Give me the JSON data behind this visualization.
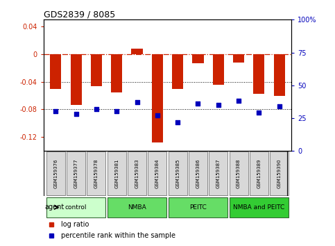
{
  "title": "GDS2839 / 8085",
  "samples": [
    "GSM159376",
    "GSM159377",
    "GSM159378",
    "GSM159381",
    "GSM159383",
    "GSM159384",
    "GSM159385",
    "GSM159386",
    "GSM159387",
    "GSM159388",
    "GSM159389",
    "GSM159390"
  ],
  "log_ratio": [
    -0.05,
    -0.073,
    -0.046,
    -0.055,
    0.008,
    -0.128,
    -0.05,
    -0.013,
    -0.044,
    -0.012,
    -0.057,
    -0.06
  ],
  "percentile_rank": [
    30,
    28,
    32,
    30,
    37,
    27,
    22,
    36,
    35,
    38,
    29,
    34
  ],
  "group_info": [
    {
      "label": "control",
      "color": "#ccffcc",
      "start": 0,
      "end": 2
    },
    {
      "label": "NMBA",
      "color": "#66dd66",
      "start": 3,
      "end": 5
    },
    {
      "label": "PEITC",
      "color": "#66dd66",
      "start": 6,
      "end": 8
    },
    {
      "label": "NMBA and PEITC",
      "color": "#33cc33",
      "start": 9,
      "end": 11
    }
  ],
  "ylim_left": [
    -0.14,
    0.05
  ],
  "ylim_right": [
    0,
    100
  ],
  "yticks_left": [
    -0.12,
    -0.08,
    -0.04,
    0,
    0.04
  ],
  "yticks_right": [
    0,
    25,
    50,
    75,
    100
  ],
  "bar_color": "#cc2200",
  "dot_color": "#0000bb",
  "hline_color": "#cc2200",
  "grid_color": "#555555",
  "bg_color": "#ffffff",
  "left_tick_color": "#cc2200",
  "right_tick_color": "#0000bb",
  "legend_red": "log ratio",
  "legend_blue": "percentile rank within the sample",
  "agent_label": "agent"
}
